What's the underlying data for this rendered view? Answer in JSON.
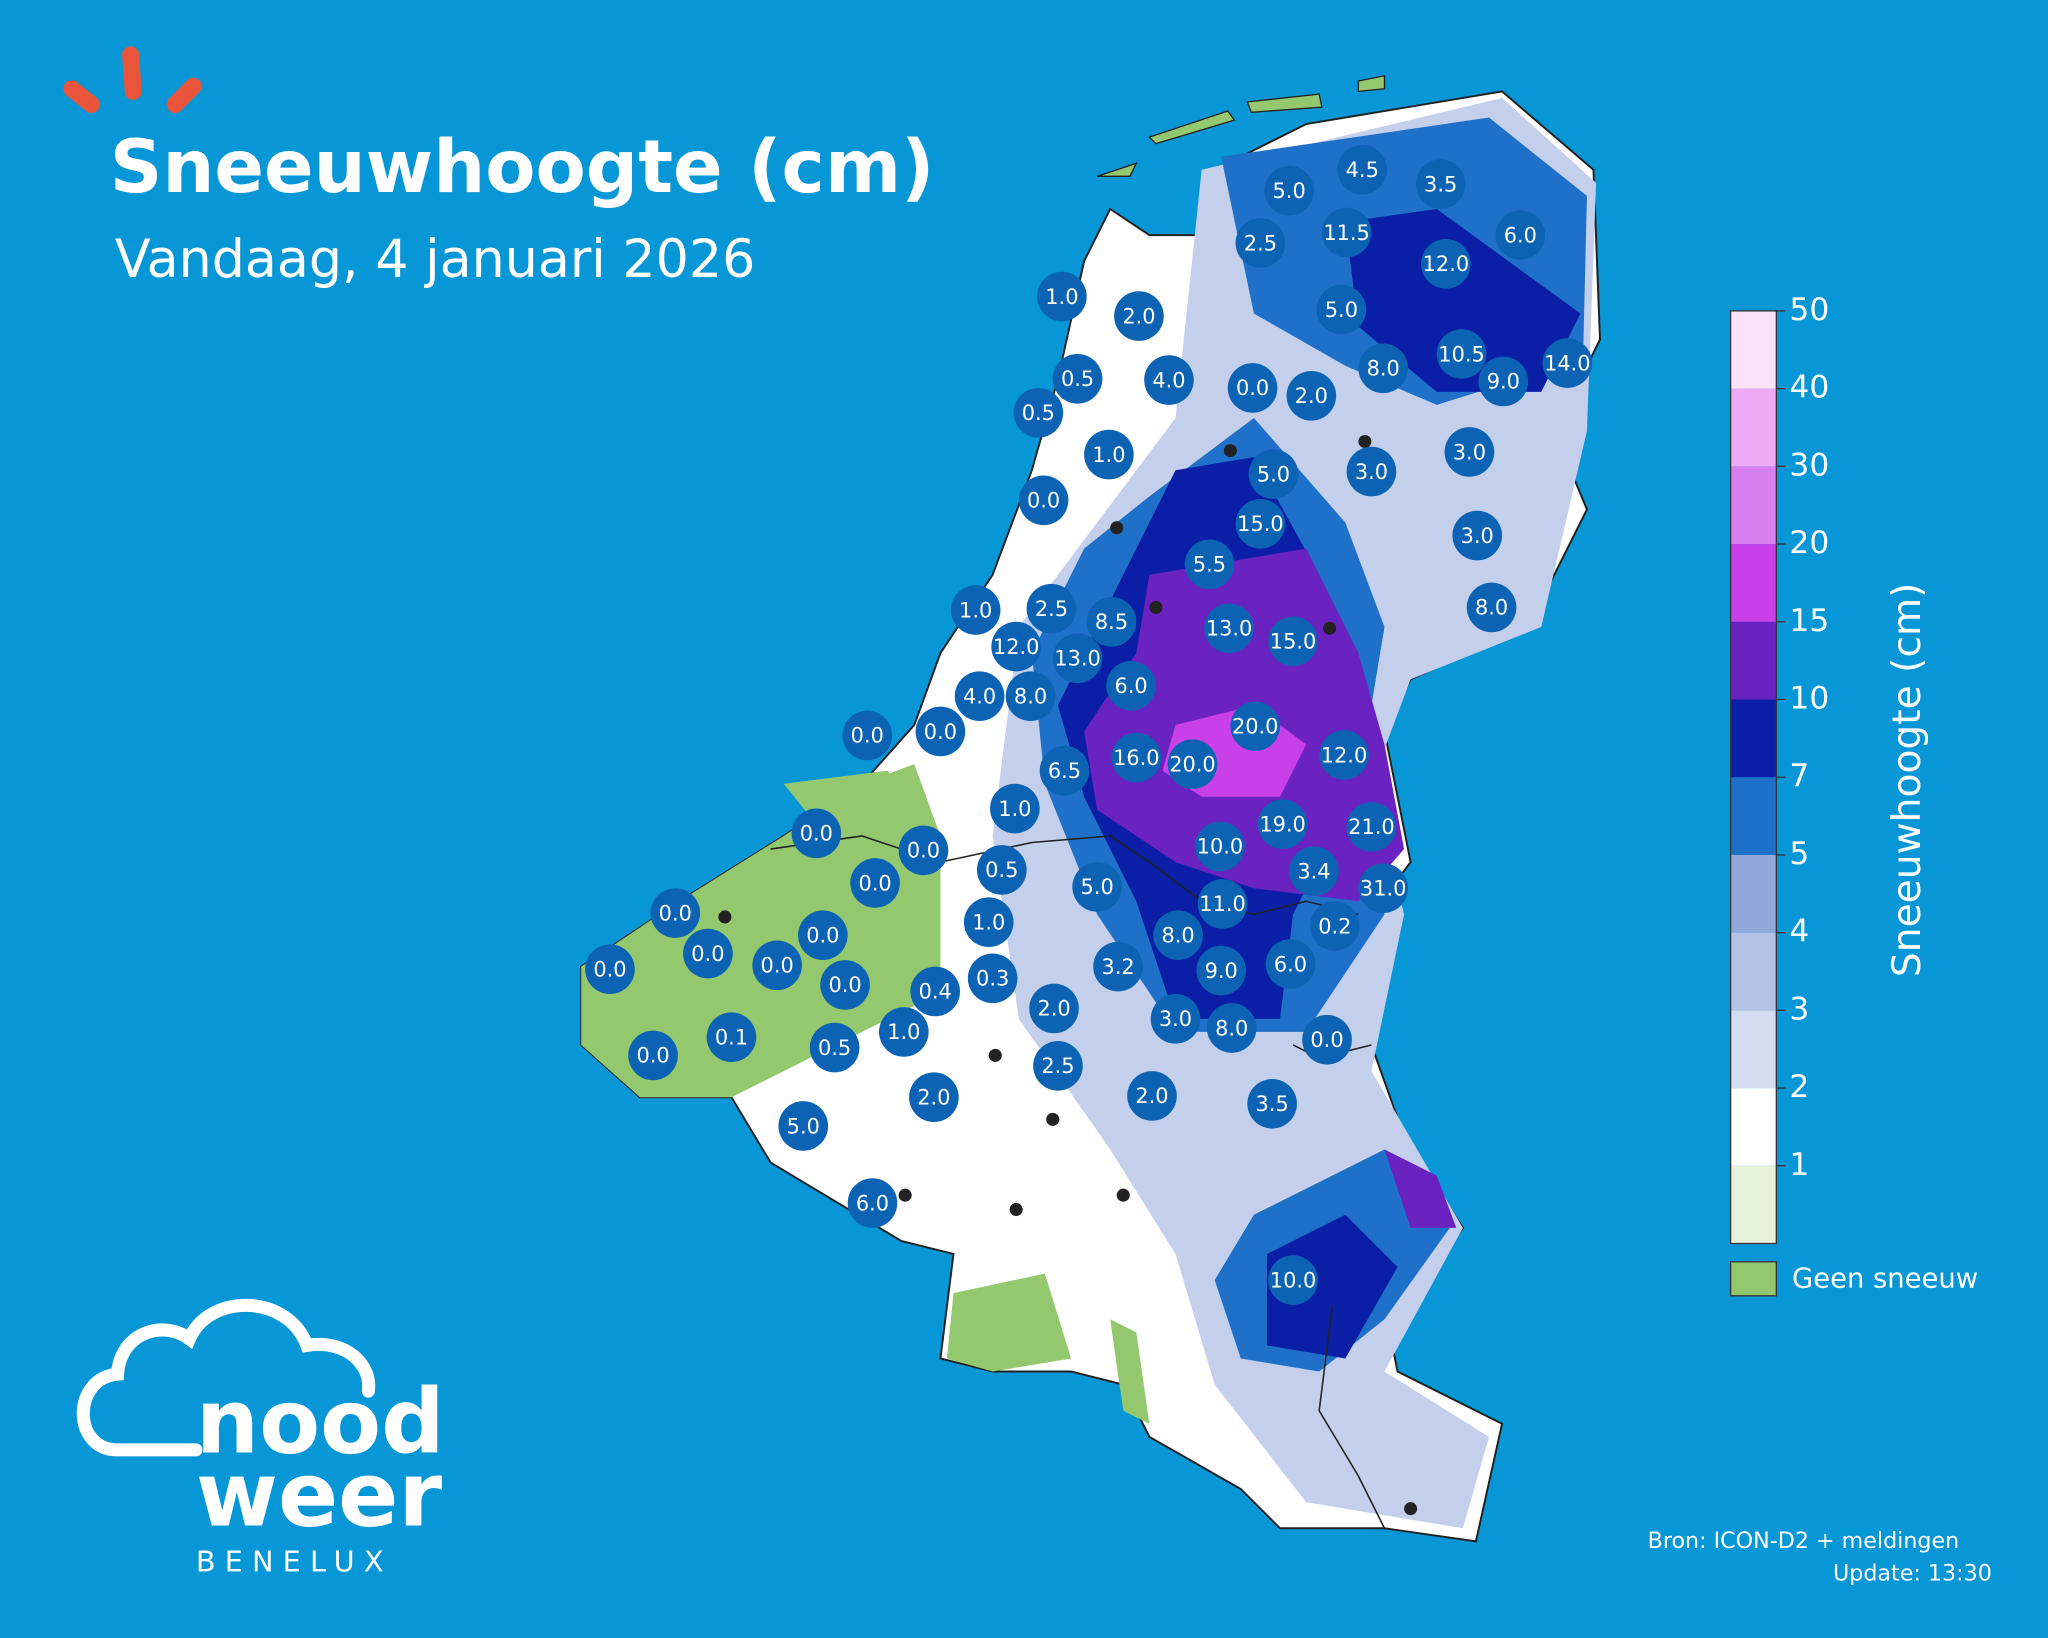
{
  "header": {
    "title": "Sneeuwhoogte (cm)",
    "subtitle": "Vandaag, 4 januari 2026"
  },
  "logo": {
    "line1": "nood",
    "line2": "weer",
    "line3": "BENELUX"
  },
  "legend": {
    "label": "Sneeuwhoogte (cm)",
    "ticks": [
      1,
      2,
      3,
      4,
      5,
      7,
      10,
      15,
      20,
      30,
      40,
      50
    ],
    "colors": [
      "#e6f2dc",
      "#ffffff",
      "#d3dcf0",
      "#b3c3e6",
      "#91a8da",
      "#1f70c8",
      "#0a1ea6",
      "#6a22c0",
      "#c93fe8",
      "#d880f0",
      "#eeacf7",
      "#fde2fb"
    ],
    "no_snow": {
      "label": "Geen sneeuw",
      "color": "#93c86f"
    }
  },
  "stations": [
    "5.0",
    "4.5",
    "3.5",
    "2.5",
    "11.5",
    "12.0",
    "6.0",
    "1.0",
    "2.0",
    "5.0",
    "0.5",
    "4.0",
    "0.0",
    "2.0",
    "8.0",
    "10.5",
    "9.0",
    "14.0",
    "0.5",
    "1.0",
    "5.0",
    "3.0",
    "3.0",
    "0.0",
    "15.0",
    "3.0",
    "5.5",
    "1.0",
    "2.5",
    "8.5",
    "8.0",
    "13.0",
    "15.0",
    "12.0",
    "13.0",
    "6.0",
    "4.0",
    "8.0",
    "0.0",
    "0.0",
    "20.0",
    "12.0",
    "6.5",
    "16.0",
    "20.0",
    "1.0",
    "0.0",
    "19.0",
    "21.0",
    "0.0",
    "0.0",
    "0.5",
    "10.0",
    "3.4",
    "31.0",
    "5.0",
    "0.0",
    "11.0",
    "0.2",
    "0.0",
    "0.0",
    "1.0",
    "8.0",
    "0.0",
    "0.0",
    "0.0",
    "0.4",
    "0.3",
    "3.2",
    "9.0",
    "6.0",
    "0.1",
    "2.0",
    "3.0",
    "8.0",
    "0.0",
    "0.0",
    "0.5",
    "1.0",
    "2.5",
    "2.0",
    "2.0",
    "3.5",
    "5.0",
    "6.0",
    "10.0"
  ],
  "footer": {
    "source": "Bron: ICON-D2 + meldingen",
    "update": "Update: 13:30"
  }
}
